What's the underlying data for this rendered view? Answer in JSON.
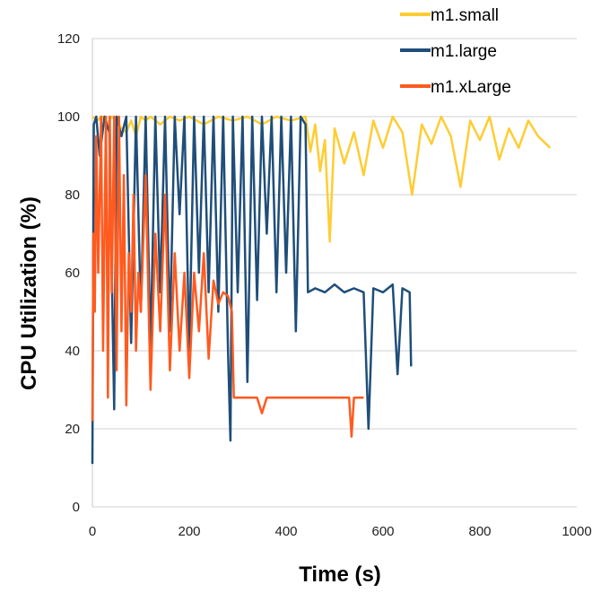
{
  "chart_data": {
    "type": "line",
    "xlabel": "Time (s)",
    "ylabel": "CPU Utilization (%)",
    "xlim": [
      0,
      1000
    ],
    "ylim": [
      0,
      120
    ],
    "x_ticks": [
      "0",
      "200",
      "400",
      "600",
      "800",
      "1000"
    ],
    "y_ticks": [
      "0",
      "20",
      "40",
      "60",
      "80",
      "100",
      "120"
    ],
    "grid": "horizontal",
    "legend_position": "top-right",
    "series": [
      {
        "name": "m1.small",
        "color": "#FFCC33",
        "x": [
          0,
          10,
          20,
          30,
          40,
          50,
          60,
          70,
          80,
          90,
          100,
          110,
          120,
          140,
          160,
          180,
          200,
          230,
          260,
          290,
          320,
          350,
          380,
          410,
          440,
          450,
          460,
          470,
          480,
          490,
          500,
          520,
          540,
          560,
          580,
          600,
          620,
          640,
          660,
          680,
          700,
          720,
          740,
          760,
          780,
          800,
          820,
          840,
          860,
          880,
          900,
          920,
          945
        ],
        "y": [
          100,
          99,
          100,
          98,
          100,
          99,
          97,
          96,
          99,
          95,
          100,
          99,
          100,
          98,
          100,
          99,
          100,
          98,
          100,
          99,
          100,
          98,
          100,
          99,
          100,
          91,
          98,
          86,
          94,
          68,
          97,
          88,
          96,
          85,
          99,
          92,
          100,
          96,
          80,
          98,
          93,
          100,
          95,
          82,
          99,
          94,
          100,
          89,
          97,
          92,
          99,
          95,
          92
        ]
      },
      {
        "name": "m1.large",
        "color": "#1F4E79",
        "x": [
          0,
          3,
          8,
          15,
          25,
          35,
          45,
          50,
          60,
          70,
          80,
          90,
          100,
          110,
          120,
          130,
          140,
          150,
          160,
          170,
          180,
          190,
          200,
          210,
          220,
          230,
          240,
          250,
          260,
          270,
          280,
          285,
          290,
          300,
          310,
          320,
          330,
          340,
          350,
          360,
          370,
          380,
          390,
          400,
          410,
          420,
          430,
          440,
          445,
          460,
          480,
          500,
          520,
          540,
          560,
          570,
          580,
          600,
          620,
          630,
          640,
          655,
          658
        ],
        "y": [
          11,
          98,
          100,
          90,
          100,
          96,
          25,
          100,
          95,
          100,
          42,
          100,
          50,
          100,
          40,
          100,
          55,
          100,
          45,
          100,
          75,
          100,
          40,
          100,
          60,
          100,
          55,
          100,
          50,
          100,
          40,
          17,
          100,
          55,
          100,
          32,
          100,
          53,
          100,
          70,
          100,
          55,
          100,
          60,
          100,
          45,
          100,
          98,
          55,
          56,
          55,
          57,
          55,
          56,
          55,
          20,
          56,
          55,
          57,
          34,
          56,
          55,
          36
        ]
      },
      {
        "name": "m1.xLarge",
        "color": "#FF5A1F",
        "x": [
          0,
          2,
          5,
          8,
          12,
          18,
          22,
          28,
          32,
          36,
          40,
          45,
          50,
          55,
          60,
          65,
          70,
          75,
          80,
          85,
          90,
          95,
          100,
          110,
          120,
          130,
          140,
          150,
          160,
          170,
          180,
          190,
          200,
          210,
          220,
          230,
          240,
          250,
          260,
          270,
          280,
          288,
          292,
          300,
          320,
          340,
          350,
          360,
          380,
          400,
          420,
          440,
          460,
          480,
          500,
          520,
          530,
          535,
          540,
          560
        ],
        "y": [
          22,
          70,
          50,
          95,
          60,
          100,
          40,
          100,
          28,
          100,
          55,
          100,
          35,
          100,
          45,
          85,
          26,
          65,
          50,
          80,
          40,
          60,
          50,
          85,
          30,
          70,
          45,
          80,
          35,
          65,
          40,
          60,
          33,
          60,
          45,
          65,
          38,
          58,
          52,
          55,
          54,
          50,
          28,
          28,
          28,
          28,
          24,
          28,
          28,
          28,
          28,
          28,
          28,
          28,
          28,
          28,
          28,
          18,
          28,
          28
        ]
      }
    ]
  }
}
